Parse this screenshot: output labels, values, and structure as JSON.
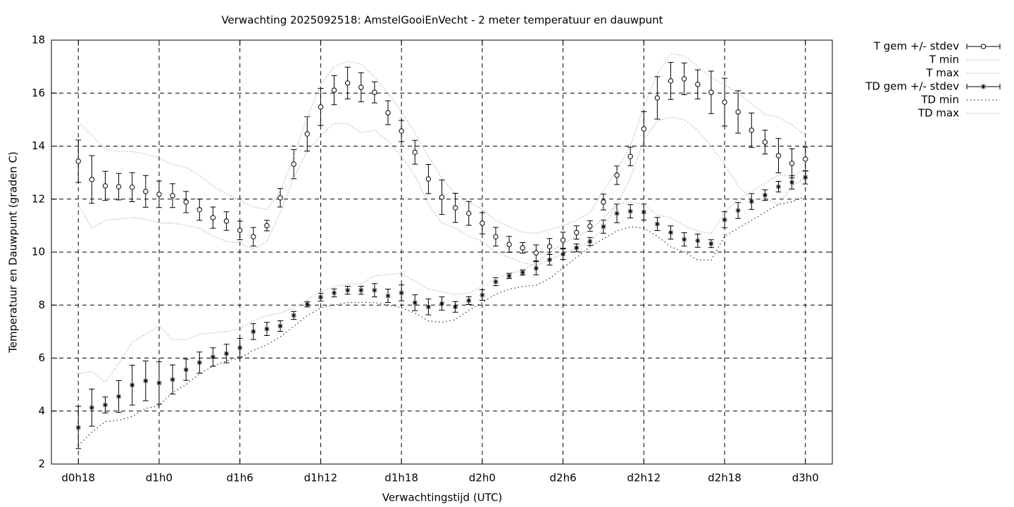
{
  "chart_data": {
    "type": "errorbar",
    "title": "Verwachting 2025092518: AmstelGooiEnVecht - 2 meter temperatuur en dauwpunt",
    "xlabel": "Verwachtingstijd (UTC)",
    "ylabel": "Temperatuur en Dauwpunt (graden C)",
    "xlim": [
      16,
      74
    ],
    "ylim": [
      2,
      18
    ],
    "xticks": [
      {
        "value": 18,
        "label": "d0h18"
      },
      {
        "value": 24,
        "label": "d1h0"
      },
      {
        "value": 30,
        "label": "d1h6"
      },
      {
        "value": 36,
        "label": "d1h12"
      },
      {
        "value": 42,
        "label": "d1h18"
      },
      {
        "value": 48,
        "label": "d2h0"
      },
      {
        "value": 54,
        "label": "d2h6"
      },
      {
        "value": 60,
        "label": "d2h12"
      },
      {
        "value": 66,
        "label": "d2h18"
      },
      {
        "value": 72,
        "label": "d3h0"
      }
    ],
    "yticks": [
      2,
      4,
      6,
      8,
      10,
      12,
      14,
      16,
      18
    ],
    "grid": true,
    "legend": "outside-right",
    "x": [
      18,
      19,
      20,
      21,
      22,
      23,
      24,
      25,
      26,
      27,
      28,
      29,
      30,
      31,
      32,
      33,
      34,
      35,
      36,
      37,
      38,
      39,
      40,
      41,
      42,
      43,
      44,
      45,
      46,
      47,
      48,
      49,
      50,
      51,
      52,
      53,
      54,
      55,
      56,
      57,
      58,
      59,
      60,
      61,
      62,
      63,
      64,
      65,
      66,
      67,
      68,
      69,
      70,
      71,
      72
    ],
    "series": [
      {
        "name": "T gem +/- stdev",
        "color": "#000000",
        "style": "errorbar",
        "marker": "circle",
        "values": [
          13.43,
          12.74,
          12.5,
          12.47,
          12.45,
          12.29,
          12.18,
          12.13,
          11.89,
          11.6,
          11.3,
          11.17,
          10.82,
          10.58,
          11.0,
          12.05,
          13.32,
          14.46,
          15.48,
          16.11,
          16.38,
          16.22,
          16.03,
          15.26,
          14.57,
          13.77,
          12.76,
          12.07,
          11.67,
          11.46,
          11.09,
          10.58,
          10.29,
          10.16,
          9.97,
          10.21,
          10.45,
          10.74,
          10.98,
          11.89,
          12.9,
          13.61,
          14.65,
          15.82,
          16.46,
          16.54,
          16.33,
          16.03,
          15.66,
          15.29,
          14.6,
          14.15,
          13.64,
          13.35,
          13.51
        ],
        "errors": [
          0.8,
          0.9,
          0.55,
          0.5,
          0.55,
          0.6,
          0.5,
          0.45,
          0.4,
          0.4,
          0.4,
          0.35,
          0.35,
          0.35,
          0.2,
          0.35,
          0.55,
          0.65,
          0.7,
          0.55,
          0.6,
          0.55,
          0.4,
          0.45,
          0.4,
          0.45,
          0.55,
          0.65,
          0.55,
          0.45,
          0.4,
          0.35,
          0.3,
          0.2,
          0.3,
          0.3,
          0.3,
          0.25,
          0.2,
          0.3,
          0.35,
          0.35,
          0.65,
          0.8,
          0.7,
          0.6,
          0.55,
          0.8,
          0.9,
          0.8,
          0.65,
          0.45,
          0.65,
          0.55,
          0.45
        ]
      },
      {
        "name": "T min",
        "color": "#a0a0a0",
        "style": "dotted",
        "values": [
          11.8,
          10.9,
          11.2,
          11.25,
          11.3,
          11.25,
          11.1,
          11.1,
          11.0,
          10.9,
          10.6,
          10.4,
          10.35,
          10.1,
          10.4,
          11.5,
          12.8,
          13.8,
          14.4,
          14.85,
          14.85,
          14.5,
          14.6,
          14.2,
          13.6,
          12.9,
          11.8,
          11.1,
          10.9,
          10.6,
          10.4,
          10.0,
          9.8,
          9.6,
          9.5,
          9.7,
          9.95,
          10.15,
          10.4,
          10.9,
          11.8,
          12.8,
          14.2,
          14.95,
          15.1,
          15.0,
          14.6,
          14.0,
          13.3,
          12.5,
          12.0,
          12.0,
          11.8,
          12.5,
          12.8
        ]
      },
      {
        "name": "T max",
        "color": "#a0a0a0",
        "style": "dotted",
        "values": [
          14.9,
          14.4,
          13.9,
          13.8,
          13.8,
          13.7,
          13.55,
          13.3,
          13.2,
          12.9,
          12.5,
          12.2,
          11.95,
          11.7,
          11.6,
          12.3,
          13.6,
          15.1,
          16.3,
          17.0,
          17.2,
          17.1,
          16.6,
          16.0,
          15.3,
          14.5,
          13.6,
          12.8,
          12.2,
          11.9,
          11.6,
          11.2,
          10.95,
          10.75,
          10.7,
          10.85,
          11.0,
          11.2,
          11.5,
          12.3,
          13.1,
          14.0,
          15.5,
          16.7,
          17.5,
          17.4,
          17.0,
          16.6,
          16.3,
          16.0,
          15.6,
          15.2,
          15.1,
          14.8,
          14.4
        ]
      },
      {
        "name": "TD gem +/- stdev",
        "color": "#000000",
        "style": "errorbar",
        "marker": "star",
        "values": [
          3.38,
          4.13,
          4.23,
          4.55,
          4.98,
          5.14,
          5.06,
          5.19,
          5.56,
          5.83,
          6.04,
          6.17,
          6.39,
          7.0,
          7.1,
          7.21,
          7.61,
          8.03,
          8.3,
          8.46,
          8.56,
          8.56,
          8.56,
          8.35,
          8.46,
          8.09,
          7.93,
          8.06,
          7.93,
          8.17,
          8.38,
          8.88,
          9.1,
          9.23,
          9.39,
          9.71,
          9.92,
          10.16,
          10.4,
          10.96,
          11.46,
          11.54,
          11.51,
          11.06,
          10.74,
          10.48,
          10.43,
          10.32,
          11.22,
          11.57,
          11.91,
          12.15,
          12.47,
          12.63,
          12.82
        ],
        "errors": [
          0.8,
          0.7,
          0.3,
          0.6,
          0.75,
          0.75,
          0.8,
          0.55,
          0.4,
          0.4,
          0.35,
          0.35,
          0.35,
          0.3,
          0.25,
          0.2,
          0.15,
          0.1,
          0.15,
          0.15,
          0.15,
          0.15,
          0.25,
          0.25,
          0.3,
          0.3,
          0.3,
          0.25,
          0.2,
          0.15,
          0.2,
          0.15,
          0.1,
          0.1,
          0.25,
          0.2,
          0.2,
          0.15,
          0.15,
          0.25,
          0.35,
          0.25,
          0.3,
          0.25,
          0.25,
          0.25,
          0.25,
          0.15,
          0.3,
          0.3,
          0.3,
          0.2,
          0.2,
          0.25,
          0.25
        ]
      },
      {
        "name": "TD min",
        "color": "#000000",
        "style": "dotted",
        "values": [
          2.7,
          3.2,
          3.6,
          3.65,
          3.8,
          4.1,
          4.2,
          4.7,
          5.0,
          5.4,
          5.7,
          5.9,
          6.0,
          6.3,
          6.5,
          6.8,
          7.2,
          7.6,
          7.9,
          8.0,
          8.1,
          8.1,
          8.1,
          8.0,
          7.9,
          7.7,
          7.4,
          7.35,
          7.45,
          7.8,
          8.1,
          8.4,
          8.6,
          8.7,
          8.75,
          9.0,
          9.4,
          9.8,
          10.2,
          10.5,
          10.8,
          10.95,
          10.9,
          10.6,
          10.2,
          10.0,
          9.7,
          9.7,
          10.6,
          10.9,
          11.2,
          11.5,
          11.8,
          11.9,
          12.1
        ]
      },
      {
        "name": "TD max",
        "color": "#a0a0a0",
        "style": "dotted",
        "values": [
          5.4,
          5.5,
          5.1,
          5.8,
          6.6,
          6.9,
          7.2,
          6.7,
          6.7,
          6.9,
          6.95,
          7.0,
          7.1,
          7.4,
          7.6,
          7.7,
          7.9,
          8.2,
          8.5,
          8.7,
          8.8,
          8.8,
          9.1,
          9.15,
          9.2,
          8.9,
          8.6,
          8.5,
          8.4,
          8.45,
          8.7,
          9.0,
          9.2,
          9.3,
          9.6,
          10.0,
          10.3,
          10.6,
          10.8,
          11.3,
          11.8,
          11.9,
          11.8,
          11.4,
          11.3,
          11.0,
          10.8,
          10.7,
          11.5,
          12.0,
          12.3,
          12.6,
          12.9,
          12.9,
          13.1
        ]
      }
    ]
  }
}
